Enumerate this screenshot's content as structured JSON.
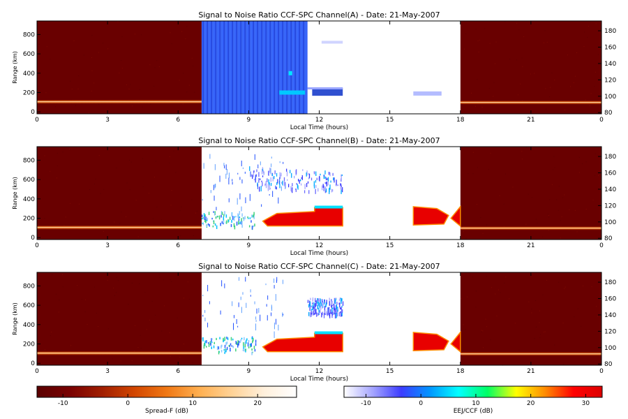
{
  "chart_data": [
    {
      "type": "heatmap",
      "title": "Signal to Noise Ratio CCF-SPC Channel(A) - Date: 21-May-2007",
      "xlabel": "Local Time (hours)",
      "ylabel": "Range (km)",
      "xlim": [
        0,
        24
      ],
      "xticks": [
        "0",
        "3",
        "6",
        "9",
        "12",
        "15",
        "18",
        "21",
        "0"
      ],
      "ylim": [
        -20,
        940
      ],
      "yticks": [
        0,
        200,
        400,
        600,
        800
      ],
      "y2lim": [
        78.5,
        192
      ],
      "y2ticks": [
        80,
        100,
        120,
        140,
        160,
        180
      ],
      "regions": [
        {
          "name": "Spread-F",
          "x": [
            0,
            7
          ],
          "note": "background about -12 dB; echo layer near 100 km range"
        },
        {
          "name": "EEJ/CCF",
          "x": [
            7,
            18
          ],
          "note": "blue noise block 7-11.5 h; echoes near 200 km 11.5-13 h and 16-18 h"
        },
        {
          "name": "Spread-F",
          "x": [
            18,
            24
          ],
          "note": "background about -12 dB; echo layer near 100 km range"
        }
      ]
    },
    {
      "type": "heatmap",
      "title": "Signal to Noise Ratio CCF-SPC Channel(B) - Date: 21-May-2007",
      "xlabel": "Local Time (hours)",
      "ylabel": "Range (km)",
      "xlim": [
        0,
        24
      ],
      "xticks": [
        "0",
        "3",
        "6",
        "9",
        "12",
        "15",
        "18",
        "21",
        "0"
      ],
      "ylim": [
        -20,
        940
      ],
      "yticks": [
        0,
        200,
        400,
        600,
        800
      ],
      "y2lim": [
        78.5,
        192
      ],
      "y2ticks": [
        80,
        100,
        120,
        140,
        160,
        180
      ],
      "regions": [
        {
          "name": "Spread-F",
          "x": [
            0,
            7
          ],
          "note": "background about -12 dB; echo layer near 100 km range"
        },
        {
          "name": "EEJ/CCF",
          "x": [
            7,
            18
          ],
          "note": "strong EEJ echoes 150-300 km from 9.5-13 h and 16-18 h; CCF echoes 480-700 km 9-13 h"
        },
        {
          "name": "Spread-F",
          "x": [
            18,
            24
          ],
          "note": "background about -12 dB; echo layer near 100 km range"
        }
      ]
    },
    {
      "type": "heatmap",
      "title": "Signal to Noise Ratio CCF-SPC Channel(C) - Date: 21-May-2007",
      "xlabel": "Local Time (hours)",
      "ylabel": "Range (km)",
      "xlim": [
        0,
        24
      ],
      "xticks": [
        "0",
        "3",
        "6",
        "9",
        "12",
        "15",
        "18",
        "21",
        "0"
      ],
      "ylim": [
        -20,
        940
      ],
      "yticks": [
        0,
        200,
        400,
        600,
        800
      ],
      "y2lim": [
        78.5,
        192
      ],
      "y2ticks": [
        80,
        100,
        120,
        140,
        160,
        180
      ],
      "regions": [
        {
          "name": "Spread-F",
          "x": [
            0,
            7
          ],
          "note": "background about -12 dB; echo layer near 100 km range"
        },
        {
          "name": "EEJ/CCF",
          "x": [
            7,
            18
          ],
          "note": "strong EEJ echoes 150-300 km from 9.5-13 h and 16-18 h; CCF echoes 520-680 km 11.5-13 h"
        },
        {
          "name": "Spread-F",
          "x": [
            18,
            24
          ],
          "note": "background about -12 dB; echo layer near 100 km range"
        }
      ]
    }
  ],
  "colorbars": [
    {
      "label": "Spread-F (dB)",
      "ticks": [
        -10,
        0,
        10,
        20
      ],
      "range": [
        -14,
        26
      ],
      "colors": [
        "#5a0000",
        "#780000",
        "#a01e00",
        "#d24600",
        "#f07814",
        "#ffaf50",
        "#ffd296",
        "#fff0dc",
        "#ffffff"
      ]
    },
    {
      "label": "EEJ/CCF (dB)",
      "ticks": [
        -10,
        0,
        10,
        20,
        30
      ],
      "range": [
        -14,
        33
      ],
      "colors": [
        "#ffffff",
        "#a5a5ff",
        "#3c3cff",
        "#0096ff",
        "#00ffff",
        "#00ff64",
        "#ffff00",
        "#ff8c00",
        "#ff0000",
        "#dc0000"
      ]
    }
  ],
  "colors": {
    "spread_background": "#690000",
    "eej_blue_noise": "#2d55ee"
  }
}
